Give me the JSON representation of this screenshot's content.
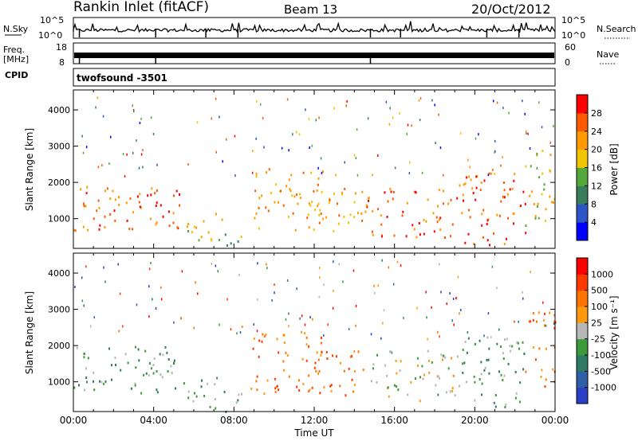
{
  "header": {
    "station": "Rankin Inlet (fitACF)",
    "beam": "Beam 13",
    "date": "20/Oct/2012"
  },
  "colors": {
    "power": [
      "#0000ff",
      "#2e55c8",
      "#3a7d5c",
      "#55a83a",
      "#f0c400",
      "#ff9a00",
      "#ff5a00",
      "#ff0000"
    ],
    "velocity": [
      "#2a3fc4",
      "#2f5fa8",
      "#2f7a64",
      "#3c9a3a",
      "#b7b7b7",
      "#ff9a10",
      "#ff7400",
      "#ff3a00",
      "#ff0000"
    ]
  },
  "chart_data": [
    {
      "type": "line",
      "panel": "noise",
      "left_label": "N.Sky",
      "right_label": "N.Search",
      "left_ticks": [
        "10^5",
        "10^0"
      ],
      "right_ticks": [
        "10^5",
        "10^0"
      ]
    },
    {
      "type": "area",
      "panel": "frequency",
      "left_label_top": "Freq.",
      "left_label_bottom": "[MHz]",
      "right_label": "Nave",
      "left_ticks": [
        18,
        8
      ],
      "right_ticks": [
        60,
        0
      ]
    },
    {
      "type": "table",
      "panel": "cpid",
      "label": "CPID",
      "value": "twofsound -3501"
    },
    {
      "type": "heatmap",
      "panel": "power",
      "ylabel": "Slant Range [km]",
      "y_ticks": [
        1000,
        2000,
        3000,
        4000
      ],
      "ylim": [
        180,
        4550
      ],
      "x_ticks": [
        "00:00",
        "04:00",
        "08:00",
        "12:00",
        "16:00",
        "20:00",
        "00:00"
      ],
      "xlim": [
        0,
        24
      ],
      "colorbar": {
        "label": "Power [dB]",
        "ticks": [
          4,
          8,
          12,
          16,
          20,
          24,
          28
        ]
      },
      "scatter_regions": [
        {
          "t": [
            0.0,
            5.6
          ],
          "r": [
            700,
            2000
          ],
          "level": 6
        },
        {
          "t": [
            5.6,
            7.5
          ],
          "r": [
            250,
            1200
          ],
          "level": 4
        },
        {
          "t": [
            7.5,
            8.6
          ],
          "r": [
            200,
            700
          ],
          "level": 3
        },
        {
          "t": [
            8.8,
            12.5
          ],
          "r": [
            700,
            2400
          ],
          "level": 5
        },
        {
          "t": [
            12.0,
            14.5
          ],
          "r": [
            600,
            1900
          ],
          "level": 5
        },
        {
          "t": [
            14.5,
            19.0
          ],
          "r": [
            500,
            1900
          ],
          "level": 6
        },
        {
          "t": [
            19.0,
            22.5
          ],
          "r": [
            300,
            2300
          ],
          "level": 6
        },
        {
          "t": [
            22.5,
            24.0
          ],
          "r": [
            800,
            3000
          ],
          "level": 4
        }
      ]
    },
    {
      "type": "heatmap",
      "panel": "velocity",
      "ylabel": "Slant Range [km]",
      "y_ticks": [
        1000,
        2000,
        3000,
        4000
      ],
      "ylim": [
        180,
        4550
      ],
      "x_ticks": [
        "00:00",
        "04:00",
        "08:00",
        "12:00",
        "16:00",
        "20:00",
        "00:00"
      ],
      "xlim": [
        0,
        24
      ],
      "xlabel": "Time UT",
      "colorbar": {
        "label": "Velocity [m s⁻¹]",
        "ticks": [
          1000,
          500,
          100,
          25,
          -25,
          -100,
          -500,
          -1000
        ]
      },
      "scatter_regions": [
        {
          "t": [
            0.0,
            5.6
          ],
          "r": [
            700,
            2000
          ],
          "level": 3
        },
        {
          "t": [
            5.6,
            7.5
          ],
          "r": [
            250,
            1200
          ],
          "level": 3
        },
        {
          "t": [
            7.5,
            8.6
          ],
          "r": [
            200,
            700
          ],
          "level": 3
        },
        {
          "t": [
            8.8,
            12.5
          ],
          "r": [
            700,
            2400
          ],
          "level": 6
        },
        {
          "t": [
            12.0,
            14.5
          ],
          "r": [
            600,
            1900
          ],
          "level": 6
        },
        {
          "t": [
            14.5,
            19.0
          ],
          "r": [
            500,
            1900
          ],
          "level": 4
        },
        {
          "t": [
            19.0,
            22.5
          ],
          "r": [
            300,
            2300
          ],
          "level": 3
        },
        {
          "t": [
            22.5,
            24.0
          ],
          "r": [
            800,
            3000
          ],
          "level": 6
        }
      ]
    }
  ]
}
